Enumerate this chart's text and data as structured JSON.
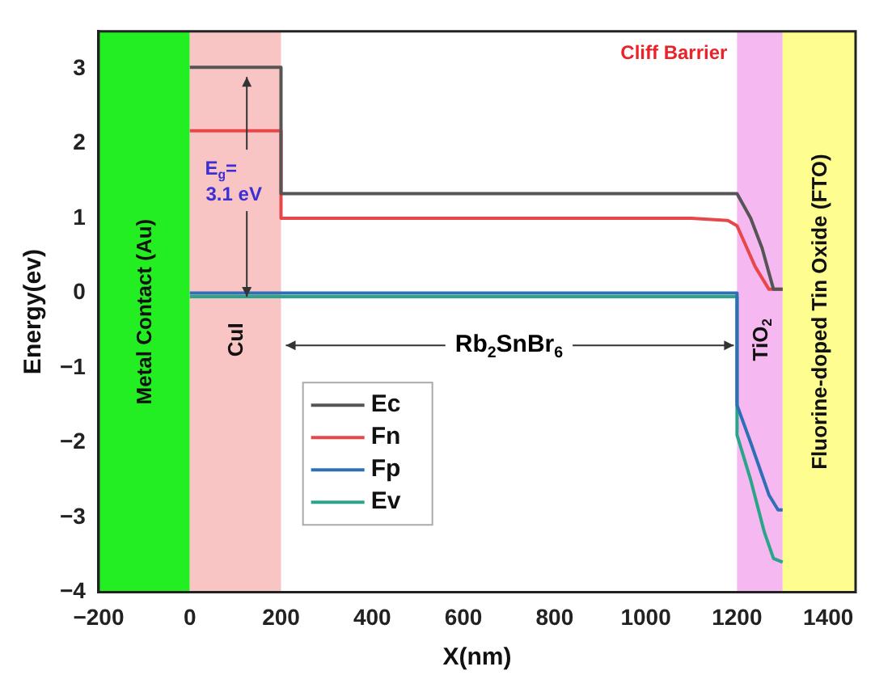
{
  "chart_data": {
    "type": "line",
    "xlabel": "X(nm)",
    "ylabel": "Energy(ev)",
    "xlim": [
      -200,
      1460
    ],
    "ylim": [
      -4,
      3.5
    ],
    "xticks": [
      -200,
      0,
      200,
      400,
      600,
      800,
      1000,
      1200,
      1400
    ],
    "yticks": [
      -4,
      -3,
      -2,
      -1,
      0,
      1,
      2,
      3
    ],
    "grid": false,
    "legend": "bottom left",
    "marker": "none",
    "line_style": "solid",
    "series": [
      {
        "name": "Ec",
        "color": "#555555",
        "x": [
          0,
          200,
          200,
          1200,
          1230,
          1255,
          1280,
          1300
        ],
        "values": [
          3.02,
          3.02,
          1.33,
          1.33,
          1.0,
          0.6,
          0.05,
          0.05
        ]
      },
      {
        "name": "Fn",
        "color": "#e8474a",
        "x": [
          0,
          200,
          200,
          1100,
          1180,
          1200,
          1240,
          1270,
          1300
        ],
        "values": [
          2.17,
          2.17,
          1.0,
          1.0,
          0.97,
          0.9,
          0.35,
          0.05,
          0.05
        ]
      },
      {
        "name": "Fp",
        "color": "#2f6fb5",
        "x": [
          0,
          200,
          1200,
          1200,
          1230,
          1270,
          1290,
          1300
        ],
        "values": [
          0,
          0,
          0,
          -1.5,
          -2.0,
          -2.7,
          -2.9,
          -2.9
        ]
      },
      {
        "name": "Ev",
        "color": "#2aa58a",
        "x": [
          0,
          200,
          1200,
          1200,
          1230,
          1260,
          1280,
          1300
        ],
        "values": [
          -0.05,
          -0.05,
          -0.05,
          -1.9,
          -2.5,
          -3.2,
          -3.55,
          -3.6
        ]
      }
    ],
    "bands": [
      {
        "axis": "x",
        "from": -200,
        "to": 0,
        "label": "Metal Contact (Au)",
        "color": "#22ee22"
      },
      {
        "axis": "x",
        "from": 0,
        "to": 200,
        "label": "CuI",
        "color": "#f8c4c4"
      },
      {
        "axis": "x",
        "from": 1200,
        "to": 1300,
        "label": "TiO$_{2}$",
        "color": "#f5b8f0"
      },
      {
        "axis": "x",
        "from": 1300,
        "to": 1460,
        "label": "Fluorine-doped Tin Oxide (FTO)",
        "color": "#fdfd90"
      }
    ],
    "annotations": [
      "Cliff Barrier",
      {
        "text": "E$_{g}$= 3.1 eV",
        "x": 125,
        "y": -0.05
      },
      {
        "text": "Rb$_{2}$SnBr$_{6}$",
        "x": 1200,
        "y": -0.7
      }
    ]
  }
}
